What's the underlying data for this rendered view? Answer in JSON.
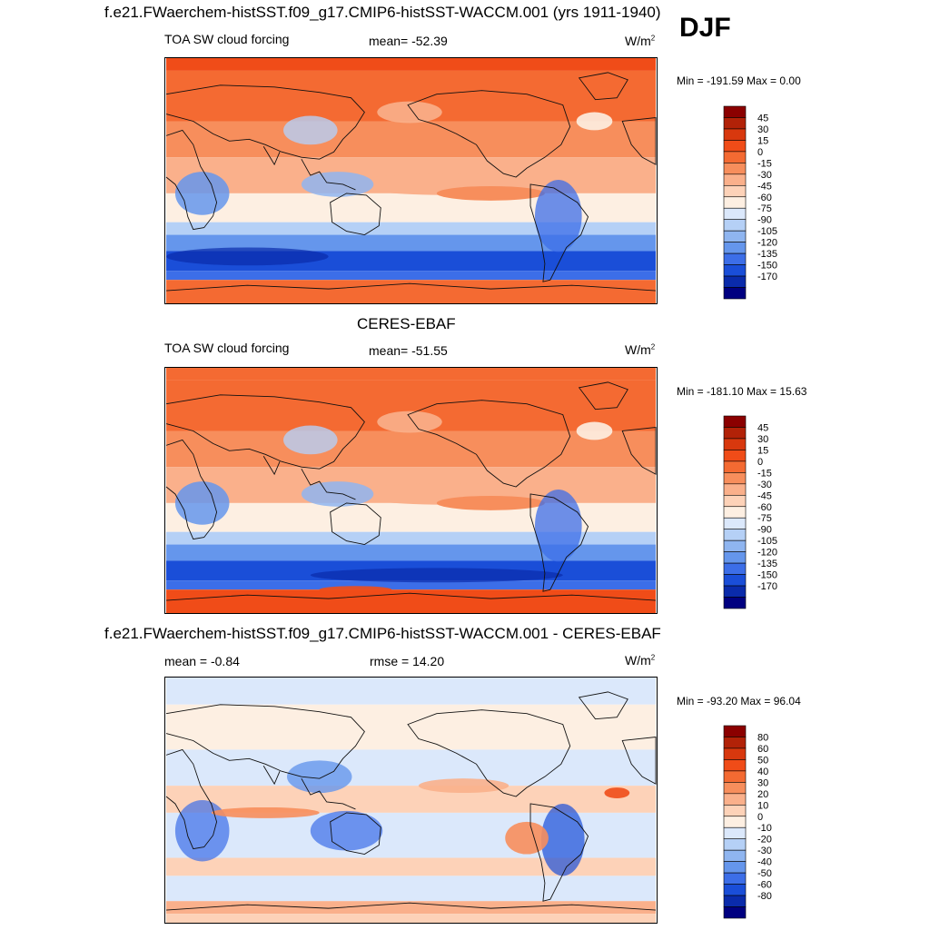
{
  "figure": {
    "season": "DJF",
    "units_label": "W/m",
    "units_sup": "2"
  },
  "panels": [
    {
      "id": "model",
      "title": "f.e21.FWaerchem-histSST.f09_g17.CMIP6-histSST-WACCM.001 (yrs 1911-1940)",
      "variable": "TOA SW cloud forcing",
      "stat1": "mean= -52.39",
      "minmax": "Min = -191.59 Max =   0.00"
    },
    {
      "id": "obs",
      "title": "CERES-EBAF",
      "variable": "TOA SW cloud forcing",
      "stat1": "mean= -51.55",
      "minmax": "Min = -181.10 Max =  15.63"
    },
    {
      "id": "diff",
      "title": "f.e21.FWaerchem-histSST.f09_g17.CMIP6-histSST-WACCM.001 - CERES-EBAF",
      "variable": "mean =  -0.84",
      "stat1": "rmse =  14.20",
      "minmax": "Min = -93.20 Max =  96.04"
    }
  ],
  "chart_data": [
    {
      "type": "heatmap",
      "title": "f.e21.FWaerchem-histSST.f09_g17.CMIP6-histSST-WACCM.001 (yrs 1911-1940)",
      "variable": "TOA SW cloud forcing",
      "season": "DJF",
      "units": "W/m2",
      "mean": -52.39,
      "min": -191.59,
      "max": 0.0,
      "colorbar_levels": [
        45,
        30,
        15,
        0,
        -15,
        -30,
        -45,
        -60,
        -75,
        -90,
        -105,
        -120,
        -135,
        -150,
        -170
      ],
      "colorbar_colors": [
        "#8b0000",
        "#b22208",
        "#d8380e",
        "#f04c18",
        "#f46a32",
        "#f78e5c",
        "#fab08b",
        "#fdd2b8",
        "#fdefe2",
        "#dbe8fb",
        "#b5d0f6",
        "#8fb5f0",
        "#6596ec",
        "#3c6ee8",
        "#1a4ed8",
        "#0a2bab",
        "#000080"
      ]
    },
    {
      "type": "heatmap",
      "title": "CERES-EBAF",
      "variable": "TOA SW cloud forcing",
      "units": "W/m2",
      "mean": -51.55,
      "min": -181.1,
      "max": 15.63,
      "colorbar_levels": [
        45,
        30,
        15,
        0,
        -15,
        -30,
        -45,
        -60,
        -75,
        -90,
        -105,
        -120,
        -135,
        -150,
        -170
      ],
      "colorbar_colors": [
        "#8b0000",
        "#b22208",
        "#d8380e",
        "#f04c18",
        "#f46a32",
        "#f78e5c",
        "#fab08b",
        "#fdd2b8",
        "#fdefe2",
        "#dbe8fb",
        "#b5d0f6",
        "#8fb5f0",
        "#6596ec",
        "#3c6ee8",
        "#1a4ed8",
        "#0a2bab",
        "#000080"
      ]
    },
    {
      "type": "heatmap",
      "title": "f.e21.FWaerchem-histSST.f09_g17.CMIP6-histSST-WACCM.001 - CERES-EBAF",
      "units": "W/m2",
      "mean": -0.84,
      "rmse": 14.2,
      "min": -93.2,
      "max": 96.04,
      "colorbar_levels": [
        80,
        60,
        50,
        40,
        30,
        20,
        10,
        0,
        -10,
        -20,
        -30,
        -40,
        -50,
        -60,
        -80
      ],
      "colorbar_colors": [
        "#8b0000",
        "#b22208",
        "#d8380e",
        "#f04c18",
        "#f46a32",
        "#f78e5c",
        "#fab08b",
        "#fdd2b8",
        "#fdefe2",
        "#dbe8fb",
        "#b5d0f6",
        "#8fb5f0",
        "#6596ec",
        "#3c6ee8",
        "#1a4ed8",
        "#0a2bab",
        "#000080"
      ]
    }
  ]
}
